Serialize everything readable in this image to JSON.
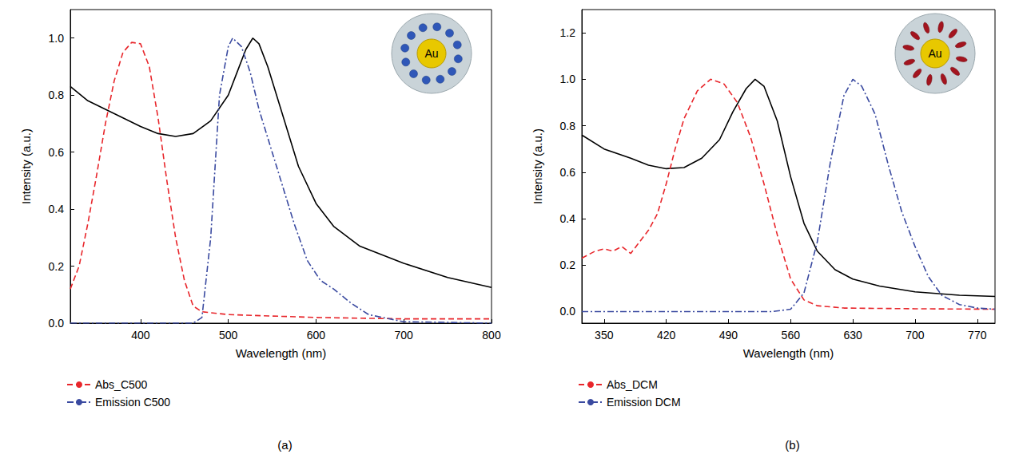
{
  "chart_data": [
    {
      "type": "line",
      "title": "(a)",
      "x_label": "Wavelength (nm)",
      "y_label": "Intensity (a.u.)",
      "xlim": [
        320,
        800
      ],
      "xticks": [
        400,
        500,
        600,
        700,
        800
      ],
      "ylim": [
        0,
        1.1
      ],
      "yticks": [
        {
          "value": 0,
          "label": "0.0"
        },
        0.2,
        0.4,
        0.6,
        0.8,
        {
          "value": 1,
          "label": "1.0"
        }
      ],
      "grid": false,
      "legend": "bottom",
      "annotations": [
        "Au"
      ],
      "series": [
        {
          "color": "#000000",
          "line_style": "solid",
          "x": [
            320,
            340,
            360,
            380,
            400,
            420,
            440,
            460,
            480,
            500,
            510,
            520,
            528,
            535,
            545,
            560,
            580,
            600,
            620,
            650,
            700,
            750,
            800
          ],
          "values": [
            0.83,
            0.78,
            0.75,
            0.72,
            0.69,
            0.665,
            0.655,
            0.665,
            0.71,
            0.8,
            0.88,
            0.96,
            1.0,
            0.98,
            0.9,
            0.75,
            0.55,
            0.42,
            0.34,
            0.27,
            0.21,
            0.16,
            0.125
          ]
        },
        {
          "name": "Abs_C500",
          "color": "#e8262b",
          "line_style": "dashed",
          "x": [
            320,
            330,
            340,
            350,
            360,
            370,
            380,
            390,
            400,
            410,
            420,
            430,
            440,
            450,
            460,
            470,
            500,
            600,
            700,
            800
          ],
          "values": [
            0.12,
            0.2,
            0.35,
            0.52,
            0.7,
            0.85,
            0.95,
            0.985,
            0.98,
            0.9,
            0.72,
            0.5,
            0.3,
            0.15,
            0.06,
            0.04,
            0.03,
            0.02,
            0.015,
            0.015
          ]
        },
        {
          "name": "Emission C500",
          "color": "#3a4aa0",
          "line_style": "dashdot",
          "x": [
            320,
            460,
            470,
            480,
            490,
            500,
            505,
            515,
            525,
            535,
            545,
            560,
            575,
            590,
            605,
            620,
            640,
            660,
            700,
            800
          ],
          "values": [
            0,
            0,
            0.02,
            0.3,
            0.8,
            0.97,
            1.0,
            0.97,
            0.88,
            0.75,
            0.65,
            0.5,
            0.35,
            0.22,
            0.15,
            0.12,
            0.07,
            0.03,
            0.005,
            0
          ]
        }
      ]
    },
    {
      "type": "line",
      "title": "(b)",
      "x_label": "Wavelength (nm)",
      "y_label": "Intensity (a.u.)",
      "xlim": [
        325,
        790
      ],
      "xticks": [
        350,
        420,
        490,
        560,
        630,
        700,
        770
      ],
      "ylim": [
        -0.05,
        1.3
      ],
      "yticks": [
        {
          "value": 0,
          "label": "0.0"
        },
        0.2,
        0.4,
        0.6,
        0.8,
        {
          "value": 1,
          "label": "1.0"
        },
        1.2
      ],
      "grid": false,
      "legend": "bottom",
      "annotations": [
        "Au"
      ],
      "series": [
        {
          "color": "#000000",
          "line_style": "solid",
          "x": [
            325,
            350,
            380,
            400,
            420,
            440,
            460,
            480,
            495,
            510,
            520,
            530,
            545,
            560,
            575,
            590,
            610,
            630,
            660,
            700,
            750,
            790
          ],
          "values": [
            0.76,
            0.7,
            0.66,
            0.63,
            0.615,
            0.62,
            0.66,
            0.74,
            0.86,
            0.96,
            1.0,
            0.97,
            0.82,
            0.58,
            0.38,
            0.26,
            0.18,
            0.14,
            0.11,
            0.085,
            0.07,
            0.065
          ]
        },
        {
          "name": "Abs_DCM",
          "color": "#e8262b",
          "line_style": "dashed",
          "x": [
            325,
            340,
            350,
            360,
            370,
            380,
            390,
            400,
            410,
            420,
            430,
            440,
            455,
            470,
            485,
            500,
            515,
            530,
            545,
            560,
            575,
            590,
            620,
            700,
            790
          ],
          "values": [
            0.23,
            0.26,
            0.27,
            0.26,
            0.28,
            0.25,
            0.3,
            0.35,
            0.42,
            0.55,
            0.7,
            0.83,
            0.95,
            1.0,
            0.98,
            0.9,
            0.75,
            0.55,
            0.33,
            0.14,
            0.05,
            0.025,
            0.015,
            0.012,
            0.01
          ]
        },
        {
          "name": "Emission DCM",
          "color": "#3a4aa0",
          "line_style": "dashdot",
          "x": [
            325,
            540,
            560,
            575,
            590,
            605,
            620,
            630,
            640,
            655,
            670,
            685,
            700,
            715,
            730,
            750,
            770,
            790
          ],
          "values": [
            0,
            0,
            0.01,
            0.08,
            0.3,
            0.65,
            0.93,
            1.0,
            0.97,
            0.85,
            0.63,
            0.43,
            0.28,
            0.15,
            0.07,
            0.03,
            0.015,
            0.01
          ]
        }
      ]
    }
  ]
}
